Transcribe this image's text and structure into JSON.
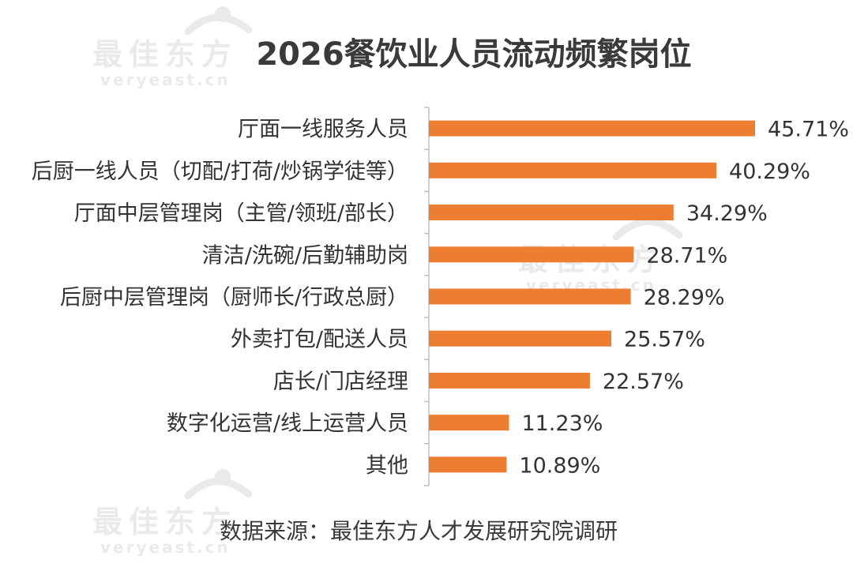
{
  "chart_data": {
    "type": "bar",
    "orientation": "horizontal",
    "title": "2026餐饮业人员流动频繁岗位",
    "categories": [
      "厅面一线服务人员",
      "后厨一线人员（切配/打荷/炒锅学徒等）",
      "厅面中层管理岗（主管/领班/部长）",
      "清洁/洗碗/后勤辅助岗",
      "后厨中层管理岗（厨师长/行政总厨）",
      "外卖打包/配送人员",
      "店长/门店经理",
      "数字化运营/线上运营人员",
      "其他"
    ],
    "values": [
      45.71,
      40.29,
      34.29,
      28.71,
      28.29,
      25.57,
      22.57,
      11.23,
      10.89
    ],
    "value_labels": [
      "45.71%",
      "40.29%",
      "34.29%",
      "28.71%",
      "28.29%",
      "25.57%",
      "22.57%",
      "11.23%",
      "10.89%"
    ],
    "unit": "%",
    "xlim": [
      0,
      50
    ],
    "grid": false,
    "legend": "none",
    "bar_color": "#ED7D31",
    "source": "数据来源：最佳东方人才发展研究院调研"
  },
  "watermark": {
    "brand": "最佳东方",
    "site": "veryeast.cn",
    "color": "#d9d9d9"
  }
}
